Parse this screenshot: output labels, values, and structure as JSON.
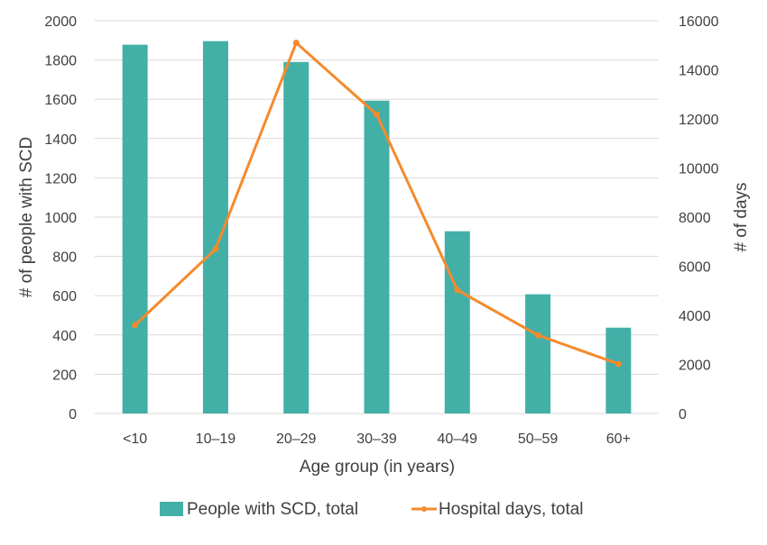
{
  "chart_data": {
    "type": "bar+line",
    "categories": [
      "<10",
      "10–19",
      "20–29",
      "30–39",
      "40–49",
      "50–59",
      "60+"
    ],
    "series": [
      {
        "name": "People with SCD, total",
        "type": "bar",
        "axis": "left",
        "color": "#43b0a8",
        "values": [
          1878,
          1896,
          1790,
          1593,
          928,
          607,
          437
        ]
      },
      {
        "name": "Hospital days, total",
        "type": "line",
        "axis": "right",
        "color": "#f58a2c",
        "values": [
          3600,
          6700,
          15100,
          12180,
          5030,
          3190,
          2020
        ]
      }
    ],
    "xlabel": "Age group (in years)",
    "ylabel": "# of people with SCD",
    "y2label": "# of days",
    "ylim": [
      0,
      2000
    ],
    "y2lim": [
      0,
      16000
    ],
    "yticks": [
      0,
      200,
      400,
      600,
      800,
      1000,
      1200,
      1400,
      1600,
      1800,
      2000
    ],
    "y2ticks": [
      0,
      2000,
      4000,
      6000,
      8000,
      10000,
      12000,
      14000,
      16000
    ],
    "grid": true,
    "legend_position": "bottom"
  }
}
